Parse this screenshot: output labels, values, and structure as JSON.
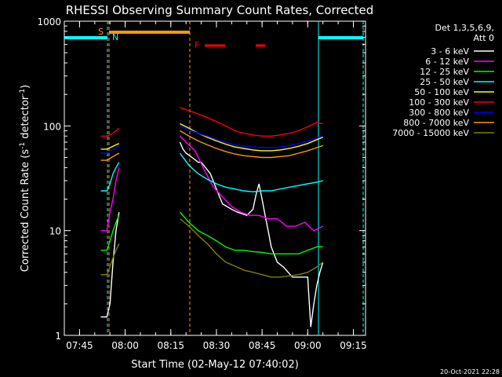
{
  "chart_data": {
    "type": "line",
    "title": "RHESSI Observing Summary Count Rates, Corrected",
    "xlabel": "Start Time (02-May-12 07:40:02)",
    "ylabel": "Corrected Count Rate (s",
    "ylabel_sup1": "-1",
    "ylabel_mid": " detector",
    "ylabel_sup2": "-1",
    "ylabel_end": ")",
    "y_scale": "log",
    "ylim": [
      1,
      1000
    ],
    "xlim_minutes": [
      0,
      99
    ],
    "x_ticks": [
      {
        "m": 5,
        "label": "07:45"
      },
      {
        "m": 20,
        "label": "08:00"
      },
      {
        "m": 35,
        "label": "08:15"
      },
      {
        "m": 50,
        "label": "08:30"
      },
      {
        "m": 65,
        "label": "08:45"
      },
      {
        "m": 80,
        "label": "09:00"
      },
      {
        "m": 95,
        "label": "09:15"
      }
    ],
    "y_ticks": [
      {
        "v": 1,
        "label": "1"
      },
      {
        "v": 10,
        "label": "10"
      },
      {
        "v": 100,
        "label": "100"
      },
      {
        "v": 1000,
        "label": "1000"
      }
    ],
    "legend_header": [
      "Det 1,3,5,6,9,",
      "Att 0"
    ],
    "series": [
      {
        "name": "3 - 6 keV",
        "color": "#ffffff",
        "x": [
          12,
          14,
          15,
          16,
          17,
          18,
          37,
          38,
          39,
          40,
          42,
          44,
          45,
          48,
          50,
          52,
          55,
          57,
          60,
          62,
          63,
          64,
          65,
          66,
          67,
          68,
          70,
          72,
          75,
          77,
          80,
          81,
          82,
          83,
          84,
          85
        ],
        "y": [
          1.5,
          1.5,
          2,
          5,
          10,
          15,
          null,
          70,
          60,
          55,
          50,
          45,
          45,
          35,
          25,
          18,
          16,
          15,
          14,
          16,
          22,
          28,
          20,
          14,
          10,
          7,
          5,
          4.5,
          3.6,
          3.6,
          3.6,
          1.2,
          2,
          3,
          4,
          5
        ]
      },
      {
        "name": "6 - 12 keV",
        "color": "#ff00ff",
        "x": [
          12,
          14,
          15,
          16,
          17,
          18,
          37,
          38,
          40,
          43,
          46,
          49,
          52,
          55,
          58,
          61,
          64,
          67,
          70,
          73,
          76,
          79,
          82,
          85
        ],
        "y": [
          10,
          10,
          15,
          20,
          30,
          40,
          null,
          80,
          70,
          58,
          38,
          26,
          21,
          17,
          15,
          14,
          14,
          13,
          13,
          11,
          11,
          12,
          10,
          11
        ]
      },
      {
        "name": "12 - 25 keV",
        "color": "#00ff00",
        "x": [
          12,
          14,
          15,
          16,
          17,
          18,
          37,
          38,
          41,
          44,
          47,
          50,
          53,
          56,
          59,
          62,
          65,
          68,
          71,
          74,
          77,
          80,
          83,
          85
        ],
        "y": [
          6.5,
          6.5,
          8,
          10,
          12,
          14,
          null,
          15,
          12,
          10,
          9,
          8,
          7,
          6.5,
          6.5,
          6.3,
          6.2,
          6,
          6,
          6,
          6,
          6.5,
          7,
          7
        ]
      },
      {
        "name": "25 - 50 keV",
        "color": "#00ffff",
        "x": [
          12,
          14,
          15,
          16,
          17,
          18,
          37,
          38,
          41,
          44,
          47,
          50,
          53,
          56,
          59,
          62,
          65,
          68,
          71,
          74,
          77,
          80,
          83,
          85
        ],
        "y": [
          24,
          24,
          28,
          35,
          40,
          45,
          null,
          55,
          42,
          35,
          31,
          28,
          26,
          25,
          24,
          23.5,
          24,
          24,
          25,
          26,
          27,
          28,
          29,
          30
        ]
      },
      {
        "name": "50 - 100 keV",
        "color": "#ffff00",
        "x": [
          12,
          14,
          15,
          16,
          17,
          18,
          37,
          38,
          41,
          44,
          47,
          50,
          53,
          56,
          59,
          62,
          65,
          68,
          71,
          74,
          77,
          80,
          83,
          85
        ],
        "y": [
          60,
          60,
          62,
          64,
          66,
          68,
          null,
          105,
          95,
          85,
          78,
          72,
          67,
          63,
          61,
          59,
          58,
          58,
          59,
          61,
          64,
          68,
          74,
          78
        ]
      },
      {
        "name": "100 - 300 keV",
        "color": "#ff0000",
        "x": [
          12,
          14,
          15,
          16,
          17,
          18,
          37,
          38,
          41,
          44,
          47,
          50,
          53,
          56,
          59,
          62,
          65,
          68,
          71,
          74,
          77,
          80,
          83,
          85
        ],
        "y": [
          80,
          80,
          82,
          85,
          90,
          95,
          null,
          150,
          140,
          130,
          120,
          110,
          100,
          90,
          85,
          82,
          80,
          80,
          82,
          85,
          90,
          98,
          108,
          105
        ]
      },
      {
        "name": "300 - 800 keV",
        "color": "#0000ff",
        "x": [
          12,
          14,
          15,
          16,
          17,
          18,
          37,
          38,
          41,
          44,
          47,
          50,
          53,
          56,
          59,
          62,
          65,
          68,
          71,
          74,
          77,
          80,
          83,
          85
        ],
        "y": [
          55,
          55,
          57,
          60,
          62,
          65,
          null,
          100,
          92,
          85,
          80,
          74,
          70,
          66,
          64,
          63,
          62,
          62,
          63,
          65,
          68,
          72,
          77,
          80
        ]
      },
      {
        "name": "800 - 7000 keV",
        "color": "#ff9900",
        "x": [
          12,
          14,
          15,
          16,
          17,
          18,
          37,
          38,
          41,
          44,
          47,
          50,
          53,
          56,
          59,
          62,
          65,
          68,
          71,
          74,
          77,
          80,
          83,
          85
        ],
        "y": [
          47,
          47,
          49,
          51,
          53,
          55,
          null,
          90,
          80,
          72,
          66,
          61,
          57,
          54,
          52,
          51,
          50,
          50,
          51,
          52,
          55,
          58,
          62,
          65
        ]
      },
      {
        "name": "7000 - 15000 keV",
        "color": "#808000",
        "x": [
          12,
          14,
          15,
          16,
          17,
          18,
          37,
          38,
          41,
          44,
          47,
          50,
          53,
          56,
          59,
          62,
          65,
          68,
          71,
          74,
          77,
          80,
          83,
          85
        ],
        "y": [
          3.8,
          3.8,
          4.5,
          5.5,
          6.5,
          7.5,
          null,
          13,
          11,
          9,
          7.5,
          6,
          5,
          4.6,
          4.2,
          4,
          3.8,
          3.6,
          3.6,
          3.7,
          3.8,
          4,
          4.5,
          5
        ]
      }
    ],
    "annotations": {
      "S": "S",
      "N": "N",
      "F": "F"
    },
    "timestamp": "20-Oct-2021 22:28"
  }
}
